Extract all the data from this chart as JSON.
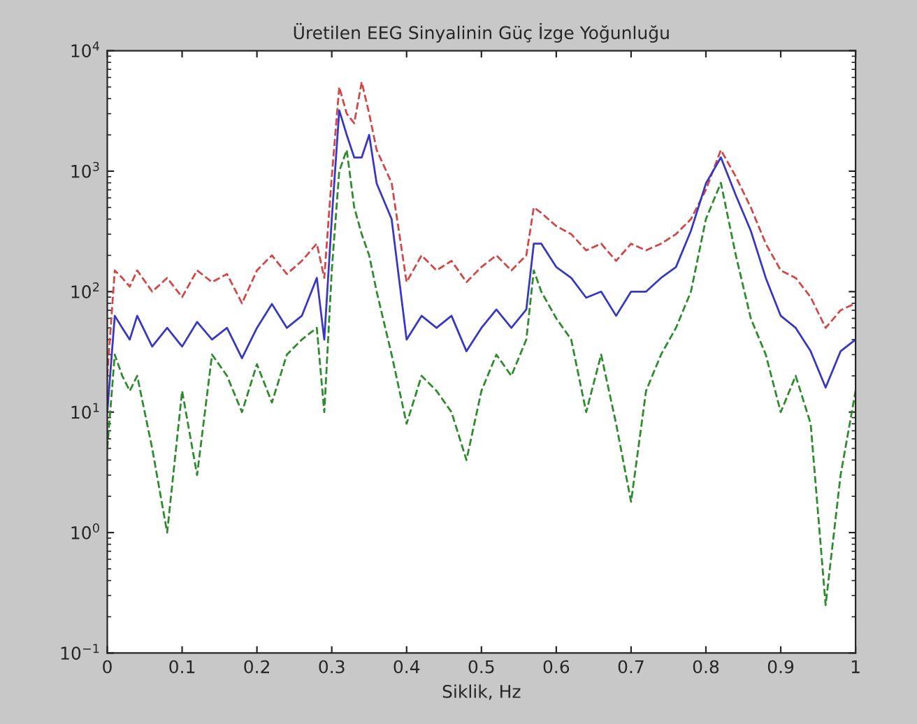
{
  "chart_data": {
    "type": "line",
    "title": "Üretilen EEG Sinyalinin Güç İzge Yoğunluğu",
    "xlabel": "Siklik, Hz",
    "log": "y",
    "grid": false,
    "marker": "none",
    "x": [
      0,
      0.01,
      0.02,
      0.03,
      0.04,
      0.06,
      0.08,
      0.1,
      0.12,
      0.14,
      0.16,
      0.18,
      0.2,
      0.22,
      0.24,
      0.26,
      0.28,
      0.29,
      0.3,
      0.31,
      0.32,
      0.33,
      0.34,
      0.35,
      0.36,
      0.38,
      0.4,
      0.42,
      0.44,
      0.46,
      0.48,
      0.5,
      0.52,
      0.54,
      0.56,
      0.57,
      0.58,
      0.6,
      0.62,
      0.64,
      0.66,
      0.68,
      0.7,
      0.72,
      0.74,
      0.76,
      0.78,
      0.8,
      0.82,
      0.84,
      0.86,
      0.88,
      0.9,
      0.92,
      0.94,
      0.96,
      0.98,
      1
    ],
    "series": [
      {
        "color": "#d04848",
        "line_style": "dashed",
        "values": [
          20,
          150,
          130,
          110,
          150,
          100,
          130,
          90,
          150,
          120,
          140,
          80,
          150,
          200,
          140,
          180,
          250,
          130,
          900,
          5000,
          3000,
          2500,
          5500,
          3000,
          1500,
          800,
          120,
          200,
          150,
          180,
          120,
          160,
          200,
          150,
          200,
          500,
          450,
          350,
          300,
          220,
          250,
          180,
          250,
          220,
          250,
          300,
          400,
          700,
          1500,
          900,
          500,
          250,
          150,
          130,
          90,
          50,
          70,
          80
        ]
      },
      {
        "color": "#3838c0",
        "line_style": "solid",
        "values": [
          10,
          63,
          50,
          40,
          63,
          35,
          50,
          35,
          56,
          40,
          50,
          28,
          50,
          79,
          50,
          63,
          130,
          40,
          400,
          3200,
          2000,
          1300,
          1300,
          2000,
          790,
          400,
          40,
          63,
          50,
          63,
          32,
          50,
          71,
          50,
          71,
          250,
          250,
          160,
          130,
          89,
          100,
          63,
          100,
          100,
          130,
          160,
          320,
          790,
          1300,
          630,
          320,
          130,
          63,
          50,
          32,
          16,
          32,
          40
        ]
      },
      {
        "color": "#2e8b2e",
        "line_style": "dashed",
        "values": [
          5,
          30,
          20,
          15,
          20,
          5,
          1,
          15,
          3,
          30,
          20,
          10,
          25,
          12,
          30,
          40,
          50,
          10,
          150,
          1000,
          1500,
          500,
          300,
          200,
          100,
          30,
          8,
          20,
          15,
          10,
          4,
          15,
          30,
          20,
          40,
          150,
          100,
          60,
          40,
          10,
          30,
          8,
          1.8,
          15,
          30,
          50,
          100,
          400,
          800,
          200,
          60,
          30,
          10,
          20,
          8,
          0.25,
          3,
          15
        ]
      }
    ],
    "xlim": [
      0,
      1
    ],
    "xticks": [
      0,
      0.1,
      0.2,
      0.3,
      0.4,
      0.5,
      0.6,
      0.7,
      0.8,
      0.9,
      1
    ],
    "ylim": [
      0.1,
      10000
    ],
    "yticks": [
      {
        "value": 0.1,
        "label": "10$^{−1}$"
      },
      {
        "value": 1,
        "label": "10$^{0}$"
      },
      {
        "value": 10,
        "label": "10$^{1}$"
      },
      {
        "value": 100,
        "label": "10$^{2}$"
      },
      {
        "value": 1000,
        "label": "10$^{3}$"
      },
      {
        "value": 10000,
        "label": "10$^{4}$"
      }
    ]
  }
}
